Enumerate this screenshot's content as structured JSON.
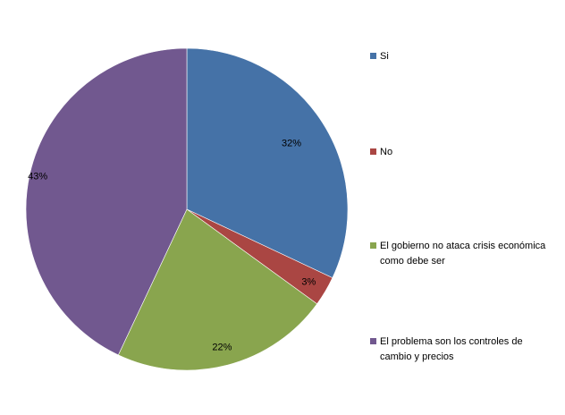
{
  "chart_data": {
    "type": "pie",
    "title": "",
    "slices": [
      {
        "label": "Si",
        "value": 32,
        "display": "32%",
        "color": "#4572A7"
      },
      {
        "label": "No",
        "value": 3,
        "display": "3%",
        "color": "#AA4643"
      },
      {
        "label": "El gobierno no ataca  crisis económica como debe ser",
        "value": 22,
        "display": "22%",
        "color": "#89A54E"
      },
      {
        "label": "El problema son los controles de cambio y precios",
        "value": 43,
        "display": "43%",
        "color": "#71588F"
      }
    ],
    "legend_position": "right",
    "start_angle": "top, clockwise"
  }
}
